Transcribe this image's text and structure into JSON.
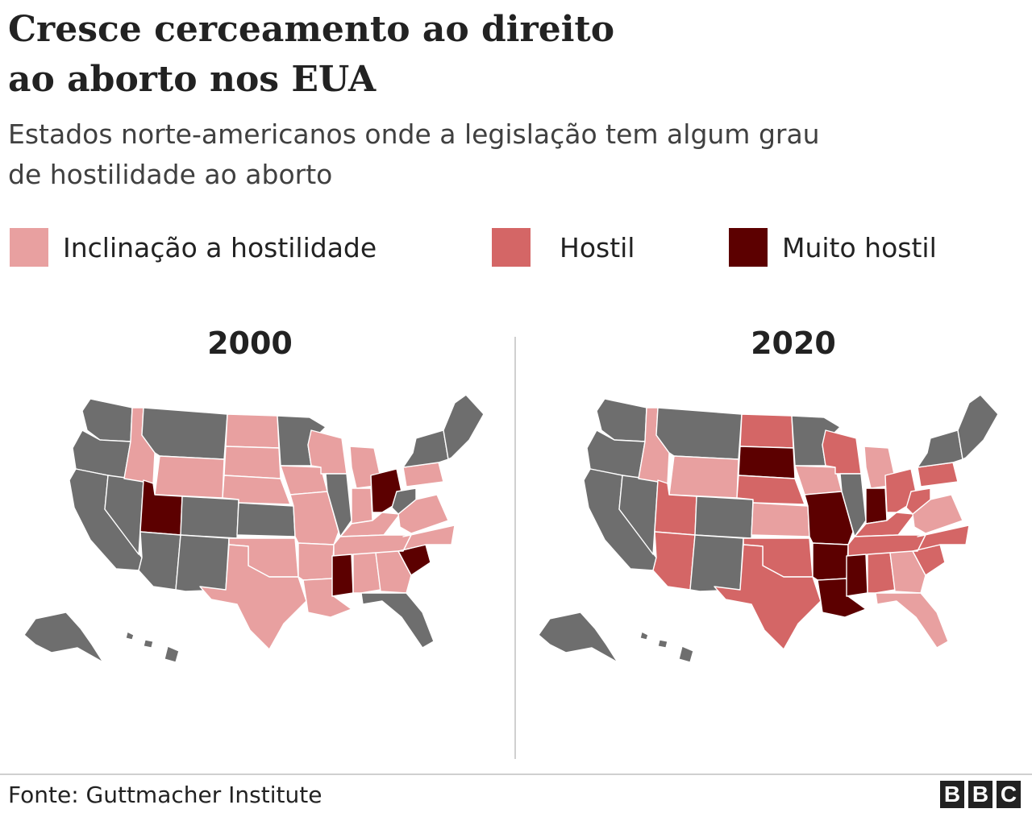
{
  "title": {
    "line1": "Cresce cerceamento ao direito",
    "line2": "ao aborto nos EUA"
  },
  "subtitle": {
    "line1": "Estados norte-americanos onde a legislação tem algum grau",
    "line2": "de hostilidade ao aborto"
  },
  "legend": [
    {
      "label": "Inclinação a hostilidade",
      "color": "#e8a0a0"
    },
    {
      "label": "Hostil",
      "color": "#d46666"
    },
    {
      "label": "Muito hostil",
      "color": "#5c0000"
    }
  ],
  "colors": {
    "none": "#6e6e6e",
    "inclinacao": "#e8a0a0",
    "hostil": "#d46666",
    "muito_hostil": "#5c0000"
  },
  "maps": [
    {
      "year": "2000",
      "categories": {
        "WA": "none",
        "OR": "none",
        "CA": "none",
        "NV": "none",
        "ID": "inclinacao",
        "MT": "none",
        "WY": "inclinacao",
        "UT": "muito_hostil",
        "AZ": "none",
        "CO": "none",
        "NM": "none",
        "ND": "inclinacao",
        "SD": "inclinacao",
        "NE": "inclinacao",
        "KS": "none",
        "OK": "inclinacao",
        "TX": "inclinacao",
        "MN": "none",
        "IA": "inclinacao",
        "MO": "inclinacao",
        "AR": "inclinacao",
        "LA": "inclinacao",
        "WI": "inclinacao",
        "IL": "none",
        "MI": "inclinacao",
        "IN": "inclinacao",
        "OH": "muito_hostil",
        "KY": "inclinacao",
        "TN": "inclinacao",
        "MS": "muito_hostil",
        "AL": "inclinacao",
        "GA": "inclinacao",
        "FL": "none",
        "SC": "muito_hostil",
        "NC": "inclinacao",
        "VA": "inclinacao",
        "WV": "none",
        "PA": "inclinacao",
        "NY": "none",
        "NE_STATES": "none",
        "AK": "none",
        "HI": "none"
      }
    },
    {
      "year": "2020",
      "categories": {
        "WA": "none",
        "OR": "none",
        "CA": "none",
        "NV": "none",
        "ID": "inclinacao",
        "MT": "none",
        "WY": "inclinacao",
        "UT": "hostil",
        "AZ": "hostil",
        "CO": "none",
        "NM": "none",
        "ND": "hostil",
        "SD": "muito_hostil",
        "NE": "hostil",
        "KS": "inclinacao",
        "OK": "hostil",
        "TX": "hostil",
        "MN": "none",
        "IA": "inclinacao",
        "MO": "muito_hostil",
        "AR": "muito_hostil",
        "LA": "muito_hostil",
        "WI": "hostil",
        "IL": "none",
        "MI": "inclinacao",
        "IN": "muito_hostil",
        "OH": "hostil",
        "KY": "hostil",
        "TN": "hostil",
        "MS": "muito_hostil",
        "AL": "hostil",
        "GA": "inclinacao",
        "FL": "inclinacao",
        "SC": "hostil",
        "NC": "hostil",
        "VA": "inclinacao",
        "WV": "hostil",
        "PA": "hostil",
        "NY": "none",
        "NE_STATES": "none",
        "AK": "none",
        "HI": "none"
      }
    }
  ],
  "source": "Fonte: Guttmacher Institute",
  "logo": [
    "B",
    "B",
    "C"
  ]
}
